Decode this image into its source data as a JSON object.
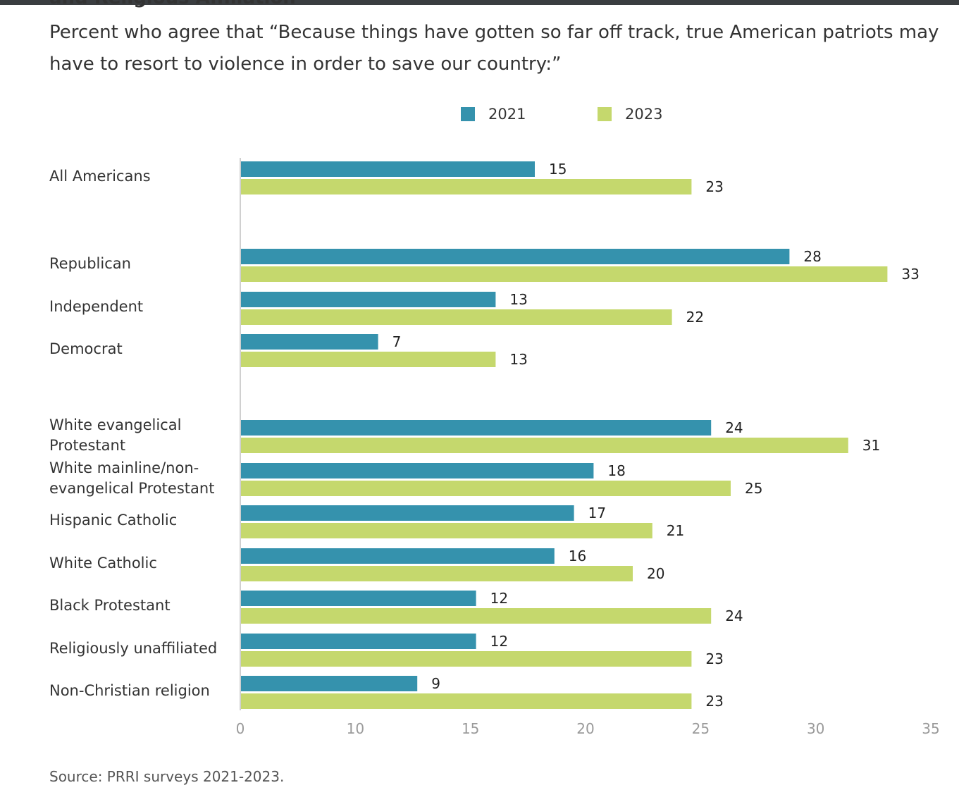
{
  "header": {
    "title_fragment": "and Religious Affiliation",
    "subtitle": "Percent who agree that “Because things have gotten so far off track, true American patriots may have to resort to violence in order to save our country:”"
  },
  "colors": {
    "series_2021": "#3592ad",
    "series_2023": "#c5d86d",
    "axis": "#d0d0d0",
    "tick_text": "#9a9a9a",
    "value_text": "#222222"
  },
  "chart_data": {
    "type": "bar",
    "orientation": "horizontal",
    "title": "",
    "xlabel": "",
    "ylabel": "",
    "xlim": [
      0,
      35
    ],
    "xticks": [
      0,
      10,
      15,
      20,
      25,
      30,
      35
    ],
    "legend_position": "top-center",
    "grid": false,
    "categories": [
      "All Americans",
      "Republican",
      "Independent",
      "Democrat",
      "White evangelical Protestant",
      "White mainline/non-evangelical Protestant",
      "Hispanic Catholic",
      "White Catholic",
      "Black Protestant",
      "Religiously unaffiliated",
      "Non-Christian religion"
    ],
    "category_label_lines": [
      [
        "All Americans"
      ],
      [
        "Republican"
      ],
      [
        "Independent"
      ],
      [
        "Democrat"
      ],
      [
        "White evangelical",
        "Protestant"
      ],
      [
        "White mainline/non-",
        "evangelical Protestant"
      ],
      [
        "Hispanic Catholic"
      ],
      [
        "White Catholic"
      ],
      [
        "Black Protestant"
      ],
      [
        "Religiously unaffiliated"
      ],
      [
        "Non-Christian religion"
      ]
    ],
    "series": [
      {
        "name": "2021",
        "values": [
          15,
          28,
          13,
          7,
          24,
          18,
          17,
          16,
          12,
          12,
          9
        ]
      },
      {
        "name": "2023",
        "values": [
          23,
          33,
          22,
          13,
          31,
          25,
          21,
          20,
          24,
          23,
          23
        ]
      }
    ]
  },
  "footer": {
    "source": "Source: PRRI surveys 2021-2023."
  }
}
